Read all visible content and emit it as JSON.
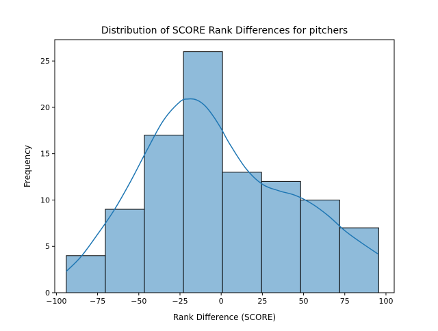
{
  "chart_data": {
    "type": "bar",
    "title": "Distribution of SCORE Rank Differences for pitchers",
    "xlabel": "Rank Difference (SCORE)",
    "ylabel": "Frequency",
    "bin_edges": [
      -94,
      -70.3,
      -46.6,
      -22.9,
      0.8,
      24.5,
      48.2,
      71.9,
      95.6
    ],
    "values": [
      4,
      9,
      17,
      26,
      13,
      12,
      10,
      7
    ],
    "xlim": [
      -101,
      105
    ],
    "ylim": [
      0,
      27.3
    ],
    "xticks": [
      -100,
      -75,
      -50,
      -25,
      0,
      25,
      50,
      75,
      100
    ],
    "xtick_labels": [
      "−100",
      "−75",
      "−50",
      "−25",
      "0",
      "25",
      "50",
      "75",
      "100"
    ],
    "yticks": [
      0,
      5,
      10,
      15,
      20,
      25
    ],
    "ytick_labels": [
      "0",
      "5",
      "10",
      "15",
      "20",
      "25"
    ],
    "kde": {
      "x": [
        -94,
        -85,
        -75,
        -65,
        -55,
        -45,
        -35,
        -25,
        -20,
        -15,
        -10,
        -5,
        0,
        5,
        15,
        25,
        35,
        45,
        55,
        65,
        75,
        85,
        95
      ],
      "y": [
        2.3,
        3.9,
        6.3,
        8.9,
        12.0,
        15.4,
        18.6,
        20.6,
        20.9,
        20.8,
        20.2,
        19.1,
        17.7,
        16.1,
        13.4,
        11.7,
        11.0,
        10.5,
        9.6,
        8.3,
        6.7,
        5.4,
        4.2
      ]
    },
    "bar_color": "#8fbbda",
    "bar_edge_color": "#000000",
    "line_color": "#1f77b4",
    "grid": false
  }
}
